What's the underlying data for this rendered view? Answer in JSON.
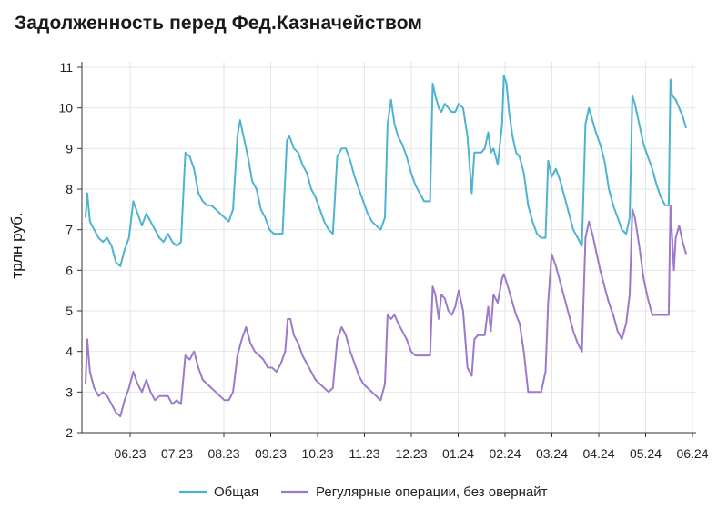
{
  "chart_data": {
    "type": "line",
    "title": "Задолженность перед Фед.Казначейством",
    "xlabel": "",
    "ylabel": "трлн руб.",
    "ylim": [
      2,
      11
    ],
    "yticks": [
      2,
      3,
      4,
      5,
      6,
      7,
      8,
      9,
      10,
      11
    ],
    "xticks": [
      "06.23",
      "07.23",
      "08.23",
      "09.23",
      "10.23",
      "11.23",
      "12.23",
      "01.24",
      "02.24",
      "03.24",
      "04.24",
      "05.24",
      "06.24"
    ],
    "x_range_months": [
      "05.23",
      "06.24"
    ],
    "grid": true,
    "legend_position": "bottom-center",
    "series": [
      {
        "name": "Общая",
        "color": "#4eb3cf",
        "points": [
          [
            0.0,
            7.3
          ],
          [
            0.02,
            7.9
          ],
          [
            0.05,
            7.2
          ],
          [
            0.1,
            7.0
          ],
          [
            0.15,
            6.8
          ],
          [
            0.2,
            6.7
          ],
          [
            0.25,
            6.8
          ],
          [
            0.3,
            6.6
          ],
          [
            0.35,
            6.2
          ],
          [
            0.4,
            6.1
          ],
          [
            0.45,
            6.5
          ],
          [
            0.5,
            6.8
          ],
          [
            0.55,
            7.7
          ],
          [
            0.6,
            7.4
          ],
          [
            0.65,
            7.1
          ],
          [
            0.7,
            7.4
          ],
          [
            0.75,
            7.2
          ],
          [
            0.8,
            7.0
          ],
          [
            0.85,
            6.8
          ],
          [
            0.9,
            6.7
          ],
          [
            0.95,
            6.9
          ],
          [
            1.0,
            6.7
          ],
          [
            1.05,
            6.6
          ],
          [
            1.1,
            6.7
          ],
          [
            1.15,
            8.9
          ],
          [
            1.2,
            8.8
          ],
          [
            1.25,
            8.5
          ],
          [
            1.3,
            7.9
          ],
          [
            1.35,
            7.7
          ],
          [
            1.4,
            7.6
          ],
          [
            1.45,
            7.6
          ],
          [
            1.5,
            7.5
          ],
          [
            1.55,
            7.4
          ],
          [
            1.6,
            7.3
          ],
          [
            1.65,
            7.2
          ],
          [
            1.7,
            7.5
          ],
          [
            1.75,
            9.3
          ],
          [
            1.78,
            9.7
          ],
          [
            1.82,
            9.3
          ],
          [
            1.87,
            8.8
          ],
          [
            1.92,
            8.2
          ],
          [
            1.97,
            8.0
          ],
          [
            2.02,
            7.5
          ],
          [
            2.07,
            7.3
          ],
          [
            2.12,
            7.0
          ],
          [
            2.17,
            6.9
          ],
          [
            2.22,
            6.9
          ],
          [
            2.27,
            6.9
          ],
          [
            2.32,
            9.2
          ],
          [
            2.35,
            9.3
          ],
          [
            2.4,
            9.0
          ],
          [
            2.45,
            8.9
          ],
          [
            2.5,
            8.6
          ],
          [
            2.55,
            8.4
          ],
          [
            2.6,
            8.0
          ],
          [
            2.65,
            7.8
          ],
          [
            2.7,
            7.5
          ],
          [
            2.75,
            7.2
          ],
          [
            2.8,
            7.0
          ],
          [
            2.85,
            6.9
          ],
          [
            2.9,
            8.8
          ],
          [
            2.95,
            9.0
          ],
          [
            3.0,
            9.0
          ],
          [
            3.05,
            8.7
          ],
          [
            3.1,
            8.3
          ],
          [
            3.15,
            8.0
          ],
          [
            3.2,
            7.7
          ],
          [
            3.25,
            7.4
          ],
          [
            3.3,
            7.2
          ],
          [
            3.35,
            7.1
          ],
          [
            3.4,
            7.0
          ],
          [
            3.45,
            7.3
          ],
          [
            3.48,
            9.6
          ],
          [
            3.52,
            10.2
          ],
          [
            3.56,
            9.6
          ],
          [
            3.6,
            9.3
          ],
          [
            3.65,
            9.1
          ],
          [
            3.7,
            8.8
          ],
          [
            3.75,
            8.4
          ],
          [
            3.8,
            8.1
          ],
          [
            3.85,
            7.9
          ],
          [
            3.9,
            7.7
          ],
          [
            3.95,
            7.7
          ],
          [
            3.97,
            7.7
          ],
          [
            4.0,
            10.6
          ],
          [
            4.03,
            10.3
          ],
          [
            4.07,
            10.0
          ],
          [
            4.1,
            9.9
          ],
          [
            4.14,
            10.1
          ],
          [
            4.18,
            10.0
          ],
          [
            4.22,
            9.9
          ],
          [
            4.26,
            9.9
          ],
          [
            4.3,
            10.1
          ],
          [
            4.35,
            10.0
          ],
          [
            4.4,
            9.3
          ],
          [
            4.45,
            7.9
          ],
          [
            4.48,
            8.9
          ],
          [
            4.52,
            8.9
          ],
          [
            4.56,
            8.9
          ],
          [
            4.6,
            9.0
          ],
          [
            4.64,
            9.4
          ],
          [
            4.67,
            8.9
          ],
          [
            4.7,
            9.0
          ],
          [
            4.75,
            8.6
          ],
          [
            4.8,
            9.6
          ],
          [
            4.82,
            10.8
          ],
          [
            4.85,
            10.6
          ],
          [
            4.88,
            9.9
          ],
          [
            4.92,
            9.3
          ],
          [
            4.96,
            8.9
          ],
          [
            5.0,
            8.8
          ],
          [
            5.05,
            8.4
          ],
          [
            5.1,
            7.6
          ],
          [
            5.15,
            7.2
          ],
          [
            5.2,
            6.9
          ],
          [
            5.25,
            6.8
          ],
          [
            5.3,
            6.8
          ],
          [
            5.33,
            8.7
          ],
          [
            5.37,
            8.3
          ],
          [
            5.42,
            8.5
          ],
          [
            5.47,
            8.2
          ],
          [
            5.52,
            7.8
          ],
          [
            5.57,
            7.4
          ],
          [
            5.62,
            7.0
          ],
          [
            5.67,
            6.8
          ],
          [
            5.72,
            6.6
          ],
          [
            5.76,
            9.6
          ],
          [
            5.8,
            10.0
          ],
          [
            5.84,
            9.7
          ],
          [
            5.88,
            9.4
          ],
          [
            5.93,
            9.1
          ],
          [
            5.98,
            8.7
          ],
          [
            6.03,
            8.0
          ],
          [
            6.08,
            7.6
          ],
          [
            6.13,
            7.3
          ],
          [
            6.18,
            7.0
          ],
          [
            6.23,
            6.9
          ],
          [
            6.27,
            7.3
          ],
          [
            6.3,
            10.3
          ],
          [
            6.33,
            10.1
          ],
          [
            6.38,
            9.6
          ],
          [
            6.43,
            9.1
          ],
          [
            6.48,
            8.8
          ],
          [
            6.53,
            8.5
          ],
          [
            6.58,
            8.1
          ],
          [
            6.63,
            7.8
          ],
          [
            6.68,
            7.6
          ],
          [
            6.72,
            7.6
          ],
          [
            6.74,
            10.7
          ],
          [
            6.76,
            10.3
          ],
          [
            6.8,
            10.2
          ],
          [
            6.84,
            10.0
          ],
          [
            6.88,
            9.8
          ],
          [
            6.92,
            9.5
          ]
        ]
      },
      {
        "name": "Регулярные операции, без овернайт",
        "color": "#9c79c9",
        "points": [
          [
            0.0,
            3.2
          ],
          [
            0.02,
            4.3
          ],
          [
            0.05,
            3.5
          ],
          [
            0.1,
            3.1
          ],
          [
            0.15,
            2.9
          ],
          [
            0.2,
            3.0
          ],
          [
            0.25,
            2.9
          ],
          [
            0.3,
            2.7
          ],
          [
            0.35,
            2.5
          ],
          [
            0.4,
            2.4
          ],
          [
            0.45,
            2.8
          ],
          [
            0.5,
            3.1
          ],
          [
            0.55,
            3.5
          ],
          [
            0.6,
            3.2
          ],
          [
            0.65,
            3.0
          ],
          [
            0.7,
            3.3
          ],
          [
            0.75,
            3.0
          ],
          [
            0.8,
            2.8
          ],
          [
            0.85,
            2.9
          ],
          [
            0.9,
            2.9
          ],
          [
            0.95,
            2.9
          ],
          [
            1.0,
            2.7
          ],
          [
            1.05,
            2.8
          ],
          [
            1.1,
            2.7
          ],
          [
            1.15,
            3.9
          ],
          [
            1.2,
            3.8
          ],
          [
            1.25,
            4.0
          ],
          [
            1.3,
            3.6
          ],
          [
            1.35,
            3.3
          ],
          [
            1.4,
            3.2
          ],
          [
            1.45,
            3.1
          ],
          [
            1.5,
            3.0
          ],
          [
            1.55,
            2.9
          ],
          [
            1.6,
            2.8
          ],
          [
            1.65,
            2.8
          ],
          [
            1.7,
            3.0
          ],
          [
            1.75,
            3.9
          ],
          [
            1.8,
            4.3
          ],
          [
            1.85,
            4.6
          ],
          [
            1.9,
            4.2
          ],
          [
            1.95,
            4.0
          ],
          [
            2.0,
            3.9
          ],
          [
            2.05,
            3.8
          ],
          [
            2.1,
            3.6
          ],
          [
            2.15,
            3.6
          ],
          [
            2.2,
            3.5
          ],
          [
            2.25,
            3.7
          ],
          [
            2.3,
            4.0
          ],
          [
            2.33,
            4.8
          ],
          [
            2.36,
            4.8
          ],
          [
            2.4,
            4.4
          ],
          [
            2.45,
            4.2
          ],
          [
            2.5,
            3.9
          ],
          [
            2.55,
            3.7
          ],
          [
            2.6,
            3.5
          ],
          [
            2.65,
            3.3
          ],
          [
            2.7,
            3.2
          ],
          [
            2.75,
            3.1
          ],
          [
            2.8,
            3.0
          ],
          [
            2.85,
            3.1
          ],
          [
            2.9,
            4.3
          ],
          [
            2.95,
            4.6
          ],
          [
            3.0,
            4.4
          ],
          [
            3.05,
            4.0
          ],
          [
            3.1,
            3.7
          ],
          [
            3.15,
            3.4
          ],
          [
            3.2,
            3.2
          ],
          [
            3.25,
            3.1
          ],
          [
            3.3,
            3.0
          ],
          [
            3.35,
            2.9
          ],
          [
            3.4,
            2.8
          ],
          [
            3.45,
            3.2
          ],
          [
            3.48,
            4.9
          ],
          [
            3.52,
            4.8
          ],
          [
            3.56,
            4.9
          ],
          [
            3.6,
            4.7
          ],
          [
            3.65,
            4.5
          ],
          [
            3.7,
            4.3
          ],
          [
            3.75,
            4.0
          ],
          [
            3.8,
            3.9
          ],
          [
            3.85,
            3.9
          ],
          [
            3.9,
            3.9
          ],
          [
            3.95,
            3.9
          ],
          [
            3.97,
            3.9
          ],
          [
            4.0,
            5.6
          ],
          [
            4.03,
            5.4
          ],
          [
            4.07,
            4.8
          ],
          [
            4.1,
            5.4
          ],
          [
            4.14,
            5.3
          ],
          [
            4.18,
            5.0
          ],
          [
            4.22,
            4.9
          ],
          [
            4.26,
            5.1
          ],
          [
            4.3,
            5.5
          ],
          [
            4.35,
            5.0
          ],
          [
            4.4,
            3.6
          ],
          [
            4.45,
            3.4
          ],
          [
            4.48,
            4.3
          ],
          [
            4.52,
            4.4
          ],
          [
            4.56,
            4.4
          ],
          [
            4.6,
            4.4
          ],
          [
            4.64,
            5.1
          ],
          [
            4.67,
            4.5
          ],
          [
            4.7,
            5.4
          ],
          [
            4.75,
            5.2
          ],
          [
            4.8,
            5.8
          ],
          [
            4.82,
            5.9
          ],
          [
            4.85,
            5.7
          ],
          [
            4.88,
            5.5
          ],
          [
            4.92,
            5.2
          ],
          [
            4.96,
            4.9
          ],
          [
            5.0,
            4.7
          ],
          [
            5.05,
            4.0
          ],
          [
            5.1,
            3.0
          ],
          [
            5.15,
            3.0
          ],
          [
            5.2,
            3.0
          ],
          [
            5.25,
            3.0
          ],
          [
            5.3,
            3.5
          ],
          [
            5.33,
            5.2
          ],
          [
            5.37,
            6.4
          ],
          [
            5.42,
            6.1
          ],
          [
            5.47,
            5.7
          ],
          [
            5.52,
            5.3
          ],
          [
            5.57,
            4.9
          ],
          [
            5.62,
            4.5
          ],
          [
            5.67,
            4.2
          ],
          [
            5.72,
            4.0
          ],
          [
            5.76,
            6.8
          ],
          [
            5.8,
            7.2
          ],
          [
            5.84,
            6.9
          ],
          [
            5.88,
            6.5
          ],
          [
            5.93,
            6.0
          ],
          [
            5.98,
            5.6
          ],
          [
            6.03,
            5.2
          ],
          [
            6.08,
            4.9
          ],
          [
            6.13,
            4.5
          ],
          [
            6.18,
            4.3
          ],
          [
            6.23,
            4.7
          ],
          [
            6.27,
            5.4
          ],
          [
            6.3,
            7.5
          ],
          [
            6.33,
            7.3
          ],
          [
            6.38,
            6.6
          ],
          [
            6.43,
            5.8
          ],
          [
            6.48,
            5.3
          ],
          [
            6.53,
            4.9
          ],
          [
            6.58,
            4.9
          ],
          [
            6.63,
            4.9
          ],
          [
            6.68,
            4.9
          ],
          [
            6.72,
            4.9
          ],
          [
            6.74,
            7.6
          ],
          [
            6.76,
            6.8
          ],
          [
            6.78,
            6.0
          ],
          [
            6.8,
            6.8
          ],
          [
            6.84,
            7.1
          ],
          [
            6.88,
            6.7
          ],
          [
            6.92,
            6.4
          ]
        ]
      }
    ]
  },
  "legend": {
    "series_0": "Общая",
    "series_1": "Регулярные операции, без овернайт"
  }
}
